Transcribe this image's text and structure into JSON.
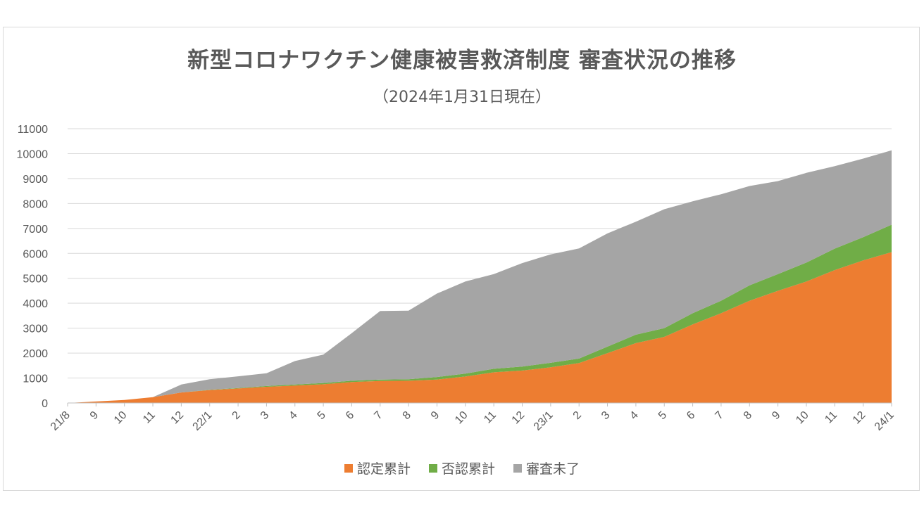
{
  "chart_data": {
    "type": "area",
    "stacked": true,
    "title": "新型コロナワクチン健康被害救済制度  審査状況の推移",
    "subtitle": "（2024年1月31日現在）",
    "xlabel": "",
    "ylabel": "",
    "ylim": [
      0,
      11000
    ],
    "yticks": [
      "0",
      "1000",
      "2000",
      "3000",
      "4000",
      "5000",
      "6000",
      "7000",
      "8000",
      "9000",
      "10000",
      "11000"
    ],
    "grid": true,
    "legend_position": "bottom",
    "categories": [
      "21/8",
      "9",
      "10",
      "11",
      "12",
      "22/1",
      "2",
      "3",
      "4",
      "5",
      "6",
      "7",
      "8",
      "9",
      "10",
      "11",
      "12",
      "23/1",
      "2",
      "3",
      "4",
      "5",
      "6",
      "7",
      "8",
      "9",
      "10",
      "11",
      "12",
      "24/1"
    ],
    "series": [
      {
        "name": "認定累計",
        "color": "#ed7d31",
        "values": [
          0,
          60,
          120,
          230,
          420,
          520,
          580,
          650,
          700,
          750,
          840,
          880,
          890,
          940,
          1060,
          1230,
          1300,
          1430,
          1600,
          2000,
          2400,
          2650,
          3150,
          3600,
          4100,
          4500,
          4870,
          5330,
          5720,
          6050
        ]
      },
      {
        "name": "否認累計",
        "color": "#70ad47",
        "values": [
          0,
          0,
          0,
          0,
          0,
          10,
          20,
          30,
          40,
          50,
          50,
          60,
          60,
          100,
          120,
          140,
          160,
          180,
          180,
          260,
          340,
          350,
          450,
          500,
          620,
          670,
          760,
          860,
          930,
          1100
        ]
      },
      {
        "name": "審査未了",
        "color": "#a5a5a5",
        "values": [
          0,
          0,
          0,
          0,
          320,
          420,
          470,
          510,
          940,
          1140,
          1910,
          2750,
          2750,
          3350,
          3690,
          3800,
          4150,
          4350,
          4420,
          4540,
          4530,
          4770,
          4490,
          4270,
          3980,
          3730,
          3600,
          3310,
          3150,
          2980
        ]
      }
    ]
  }
}
